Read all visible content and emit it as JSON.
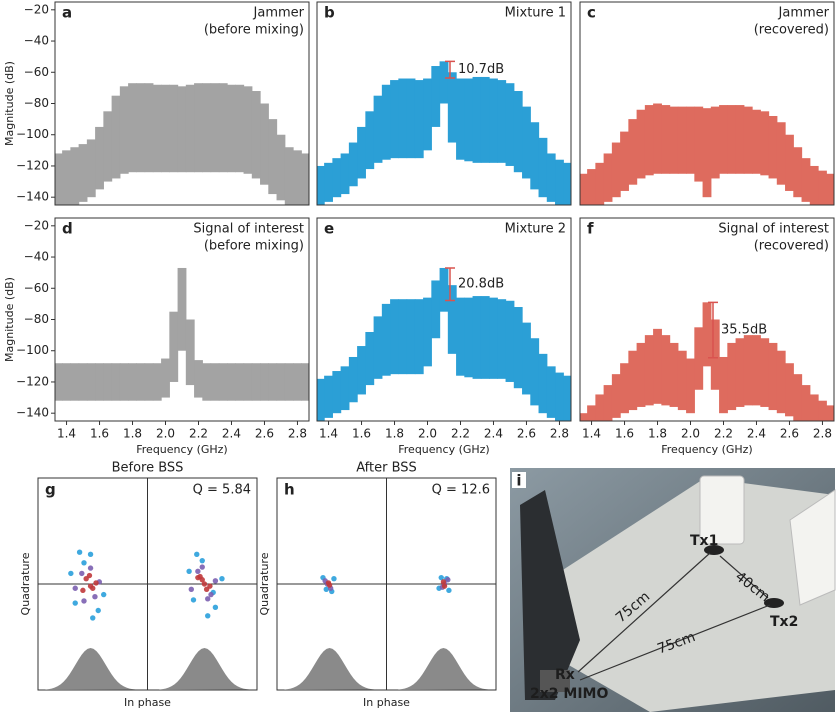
{
  "chart_data": [
    {
      "type": "range",
      "label": "a",
      "title": [
        "Jammer",
        "(before mixing)"
      ],
      "color": "#a3a3a3",
      "ylabel": "Magnitude (dB)",
      "x": [
        1.35,
        1.4,
        1.45,
        1.5,
        1.55,
        1.6,
        1.65,
        1.7,
        1.75,
        1.8,
        1.85,
        1.9,
        1.95,
        2.0,
        2.05,
        2.1,
        2.15,
        2.2,
        2.25,
        2.3,
        2.35,
        2.4,
        2.45,
        2.5,
        2.55,
        2.6,
        2.65,
        2.7,
        2.75,
        2.8,
        2.85
      ],
      "high": [
        -112,
        -110,
        -108,
        -106,
        -103,
        -95,
        -85,
        -75,
        -69,
        -67,
        -67,
        -67,
        -68,
        -68,
        -68,
        -69,
        -68,
        -67,
        -67,
        -67,
        -67,
        -68,
        -68,
        -69,
        -72,
        -80,
        -90,
        -100,
        -108,
        -110,
        -112
      ],
      "low": [
        -145,
        -145,
        -145,
        -143,
        -140,
        -135,
        -130,
        -128,
        -125,
        -124,
        -124,
        -124,
        -124,
        -124,
        -124,
        -124,
        -124,
        -124,
        -124,
        -124,
        -124,
        -124,
        -124,
        -125,
        -128,
        -132,
        -138,
        -142,
        -145,
        -145,
        -145
      ],
      "xlim": [
        1.33,
        2.87
      ],
      "ylim": [
        -145,
        -15
      ],
      "yticks": [
        {
          "value": -140,
          "label": "−140"
        },
        {
          "value": -120,
          "label": "−120"
        },
        {
          "value": -100,
          "label": "−100"
        },
        {
          "value": -80,
          "label": "−80"
        },
        {
          "value": -60,
          "label": "−60"
        },
        {
          "value": -40,
          "label": "−40"
        },
        {
          "value": -20,
          "label": "−20"
        }
      ]
    },
    {
      "type": "range",
      "label": "b",
      "title": [
        "Mixture 1"
      ],
      "color": "#2b9fd6",
      "x": [
        1.35,
        1.4,
        1.45,
        1.5,
        1.55,
        1.6,
        1.65,
        1.7,
        1.75,
        1.8,
        1.85,
        1.9,
        1.95,
        2.0,
        2.05,
        2.1,
        2.15,
        2.2,
        2.25,
        2.3,
        2.35,
        2.4,
        2.45,
        2.5,
        2.55,
        2.6,
        2.65,
        2.7,
        2.75,
        2.8,
        2.85
      ],
      "high": [
        -120,
        -118,
        -115,
        -112,
        -105,
        -95,
        -85,
        -75,
        -68,
        -65,
        -64,
        -64,
        -65,
        -64,
        -56,
        -53,
        -60,
        -64,
        -64,
        -63,
        -63,
        -64,
        -65,
        -67,
        -72,
        -82,
        -92,
        -102,
        -112,
        -116,
        -118
      ],
      "low": [
        -145,
        -143,
        -140,
        -138,
        -133,
        -128,
        -122,
        -118,
        -116,
        -115,
        -115,
        -115,
        -115,
        -110,
        -95,
        -80,
        -105,
        -116,
        -117,
        -118,
        -118,
        -118,
        -118,
        -120,
        -124,
        -128,
        -135,
        -140,
        -143,
        -145,
        -145
      ],
      "xlim": [
        1.33,
        2.87
      ],
      "ylim": [
        -145,
        -15
      ],
      "annotation": {
        "value": 10.7,
        "label": "10.7dB"
      }
    },
    {
      "type": "range",
      "label": "c",
      "title": [
        "Jammer",
        "(recovered)"
      ],
      "color": "#de6b5e",
      "x": [
        1.35,
        1.4,
        1.45,
        1.5,
        1.55,
        1.6,
        1.65,
        1.7,
        1.75,
        1.8,
        1.85,
        1.9,
        1.95,
        2.0,
        2.05,
        2.1,
        2.15,
        2.2,
        2.25,
        2.3,
        2.35,
        2.4,
        2.45,
        2.5,
        2.55,
        2.6,
        2.65,
        2.7,
        2.75,
        2.8,
        2.85
      ],
      "high": [
        -125,
        -122,
        -118,
        -112,
        -105,
        -98,
        -90,
        -84,
        -81,
        -80,
        -81,
        -82,
        -82,
        -82,
        -82,
        -83,
        -82,
        -81,
        -81,
        -81,
        -82,
        -84,
        -85,
        -88,
        -92,
        -100,
        -108,
        -115,
        -120,
        -123,
        -125
      ],
      "low": [
        -145,
        -145,
        -145,
        -143,
        -140,
        -136,
        -132,
        -128,
        -126,
        -125,
        -125,
        -125,
        -125,
        -125,
        -130,
        -140,
        -128,
        -125,
        -125,
        -125,
        -125,
        -125,
        -126,
        -128,
        -132,
        -136,
        -140,
        -143,
        -145,
        -145,
        -145
      ],
      "xlim": [
        1.33,
        2.87
      ],
      "ylim": [
        -145,
        -15
      ]
    },
    {
      "type": "range",
      "label": "d",
      "title": [
        "Signal of interest",
        "(before mixing)"
      ],
      "color": "#a3a3a3",
      "ylabel": "Magnitude (dB)",
      "xlabel": "Frequency (GHz)",
      "x": [
        1.35,
        1.4,
        1.45,
        1.5,
        1.55,
        1.6,
        1.65,
        1.7,
        1.75,
        1.8,
        1.85,
        1.9,
        1.95,
        2.0,
        2.05,
        2.1,
        2.15,
        2.2,
        2.25,
        2.3,
        2.35,
        2.4,
        2.45,
        2.5,
        2.55,
        2.6,
        2.65,
        2.7,
        2.75,
        2.8,
        2.85
      ],
      "high": [
        -108,
        -108,
        -108,
        -108,
        -108,
        -108,
        -108,
        -108,
        -108,
        -108,
        -108,
        -108,
        -108,
        -105,
        -75,
        -47,
        -80,
        -106,
        -108,
        -108,
        -108,
        -108,
        -108,
        -108,
        -108,
        -108,
        -108,
        -108,
        -108,
        -108,
        -108
      ],
      "low": [
        -132,
        -132,
        -132,
        -132,
        -132,
        -132,
        -132,
        -132,
        -132,
        -132,
        -132,
        -132,
        -132,
        -130,
        -120,
        -100,
        -122,
        -130,
        -132,
        -132,
        -132,
        -132,
        -132,
        -132,
        -132,
        -132,
        -132,
        -132,
        -132,
        -132,
        -132
      ],
      "xlim": [
        1.33,
        2.87
      ],
      "ylim": [
        -145,
        -15
      ],
      "xticks": [
        1.4,
        1.6,
        1.8,
        {
          "value": 2,
          "label": "2.0"
        },
        2.2,
        2.4,
        2.6,
        2.8
      ],
      "yticks": [
        {
          "value": -140,
          "label": "−140"
        },
        {
          "value": -120,
          "label": "−120"
        },
        {
          "value": -100,
          "label": "−100"
        },
        {
          "value": -80,
          "label": "−80"
        },
        {
          "value": -60,
          "label": "−60"
        },
        {
          "value": -40,
          "label": "−40"
        },
        {
          "value": -20,
          "label": "−20"
        }
      ]
    },
    {
      "type": "range",
      "label": "e",
      "title": [
        "Mixture 2"
      ],
      "color": "#2b9fd6",
      "xlabel": "Frequency (GHz)",
      "x": [
        1.35,
        1.4,
        1.45,
        1.5,
        1.55,
        1.6,
        1.65,
        1.7,
        1.75,
        1.8,
        1.85,
        1.9,
        1.95,
        2.0,
        2.05,
        2.1,
        2.15,
        2.2,
        2.25,
        2.3,
        2.35,
        2.4,
        2.45,
        2.5,
        2.55,
        2.6,
        2.65,
        2.7,
        2.75,
        2.8,
        2.85
      ],
      "high": [
        -118,
        -116,
        -113,
        -110,
        -104,
        -97,
        -88,
        -78,
        -70,
        -67,
        -67,
        -67,
        -67,
        -66,
        -55,
        -47,
        -58,
        -66,
        -66,
        -65,
        -65,
        -66,
        -67,
        -68,
        -72,
        -82,
        -92,
        -102,
        -110,
        -114,
        -116
      ],
      "low": [
        -145,
        -143,
        -140,
        -138,
        -133,
        -128,
        -122,
        -118,
        -116,
        -115,
        -115,
        -115,
        -115,
        -110,
        -92,
        -75,
        -102,
        -116,
        -117,
        -118,
        -118,
        -118,
        -118,
        -120,
        -124,
        -128,
        -135,
        -140,
        -143,
        -145,
        -145
      ],
      "xlim": [
        1.33,
        2.87
      ],
      "ylim": [
        -145,
        -15
      ],
      "xticks": [
        1.4,
        1.6,
        1.8,
        {
          "value": 2,
          "label": "2.0"
        },
        2.2,
        2.4,
        2.6,
        2.8
      ],
      "annotation": {
        "value": 20.8,
        "label": "20.8dB"
      }
    },
    {
      "type": "range",
      "label": "f",
      "title": [
        "Signal of interest",
        "(recovered)"
      ],
      "color": "#de6b5e",
      "xlabel": "Frequency (GHz)",
      "x": [
        1.35,
        1.4,
        1.45,
        1.5,
        1.55,
        1.6,
        1.65,
        1.7,
        1.75,
        1.8,
        1.85,
        1.9,
        1.95,
        2.0,
        2.05,
        2.1,
        2.15,
        2.2,
        2.25,
        2.3,
        2.35,
        2.4,
        2.45,
        2.5,
        2.55,
        2.6,
        2.65,
        2.7,
        2.75,
        2.8,
        2.85
      ],
      "high": [
        -140,
        -135,
        -128,
        -122,
        -115,
        -108,
        -100,
        -95,
        -90,
        -86,
        -90,
        -95,
        -100,
        -105,
        -85,
        -69,
        -80,
        -104,
        -95,
        -92,
        -90,
        -90,
        -92,
        -95,
        -100,
        -108,
        -115,
        -122,
        -128,
        -132,
        -135
      ],
      "low": [
        -145,
        -145,
        -145,
        -145,
        -143,
        -140,
        -138,
        -136,
        -135,
        -134,
        -135,
        -136,
        -138,
        -140,
        -125,
        -110,
        -125,
        -140,
        -138,
        -136,
        -135,
        -135,
        -136,
        -138,
        -140,
        -142,
        -145,
        -145,
        -145,
        -145,
        -145
      ],
      "xlim": [
        1.33,
        2.87
      ],
      "ylim": [
        -145,
        -15
      ],
      "xticks": [
        1.4,
        1.6,
        1.8,
        {
          "value": 2,
          "label": "2.0"
        },
        2.2,
        2.4,
        2.6,
        2.8
      ],
      "annotation": {
        "value": 35.5,
        "label": "35.5dB"
      }
    },
    {
      "type": "scatter",
      "label": "g",
      "title": "Before BSS",
      "annotation": {
        "value": 5.84,
        "label": "Q = 5.84"
      },
      "xlabel": "In phase",
      "ylabel": "Quadrature",
      "xlim": [
        -1,
        1
      ],
      "ylim": [
        -1,
        1
      ],
      "series": [
        {
          "color": "#2aa0dc",
          "x": [
            -0.62,
            -0.45,
            -0.7,
            -0.5,
            -0.58,
            -0.4,
            -0.66,
            -0.52,
            0.45,
            0.62,
            0.38,
            0.55,
            0.68,
            0.5,
            0.42,
            0.6
          ],
          "y": [
            0.3,
            -0.25,
            0.1,
            -0.32,
            0.2,
            -0.1,
            -0.18,
            0.28,
            0.28,
            -0.22,
            0.12,
            -0.3,
            0.05,
            0.22,
            -0.15,
            -0.08
          ]
        },
        {
          "color": "#7b5fb0",
          "x": [
            -0.6,
            -0.48,
            -0.66,
            -0.52,
            -0.44,
            -0.58,
            0.46,
            0.58,
            0.62,
            0.5,
            0.4,
            0.55
          ],
          "y": [
            0.1,
            -0.12,
            -0.04,
            0.15,
            0.02,
            -0.16,
            0.12,
            -0.1,
            0.03,
            0.16,
            -0.05,
            -0.14
          ]
        },
        {
          "color": "#c0393b",
          "x": [
            -0.56,
            -0.5,
            -0.53,
            -0.47,
            -0.59,
            -0.52,
            0.5,
            0.54,
            0.48,
            0.57,
            0.52,
            0.46
          ],
          "y": [
            0.05,
            -0.04,
            0.08,
            0.01,
            -0.06,
            -0.02,
            0.04,
            -0.05,
            0.07,
            -0.02,
            0,
            0.06
          ]
        }
      ]
    },
    {
      "type": "scatter",
      "label": "h",
      "title": "After BSS",
      "annotation": {
        "value": 12.6,
        "label": "Q = 12.6"
      },
      "xlabel": "In phase",
      "ylabel": "Quadrature",
      "xlim": [
        -1,
        1
      ],
      "ylim": [
        -1,
        1
      ],
      "series": [
        {
          "color": "#2aa0dc",
          "x": [
            -0.58,
            -0.5,
            -0.55,
            -0.48,
            0.5,
            0.57,
            0.48,
            0.55
          ],
          "y": [
            0.06,
            -0.07,
            -0.05,
            0.05,
            0.06,
            -0.06,
            -0.04,
            0.05
          ]
        },
        {
          "color": "#7b5fb0",
          "x": [
            -0.56,
            -0.51,
            -0.54,
            0.51,
            0.56,
            0.53
          ],
          "y": [
            0.03,
            -0.04,
            0,
            -0.03,
            0.04,
            0
          ]
        },
        {
          "color": "#c0393b",
          "x": [
            -0.53,
            -0.52,
            0.52,
            0.53
          ],
          "y": [
            0.01,
            -0.01,
            0.02,
            -0.02
          ]
        }
      ]
    }
  ],
  "photo": {
    "label": "i",
    "tx1": "Tx1",
    "tx2": "Tx2",
    "tx_distance": "40cm",
    "rx_tx1_distance": "75cm",
    "rx_tx2_distance": "75cm",
    "rx": "Rx",
    "rx_type": "2x2 MIMO"
  }
}
